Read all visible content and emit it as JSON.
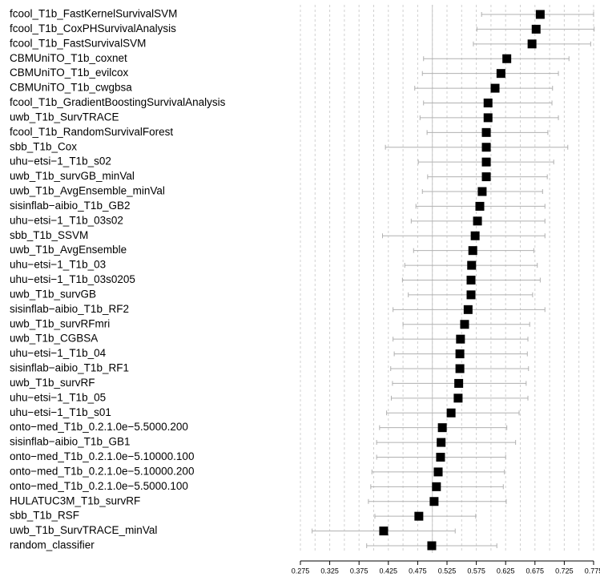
{
  "chart_data": {
    "type": "forest",
    "categories": [
      "fcool_T1b_FastKernelSurvivalSVM",
      "fcool_T1b_CoxPHSurvivalAnalysis",
      "fcool_T1b_FastSurvivalSVM",
      "CBMUniTO_T1b_coxnet",
      "CBMUniTO_T1b_evilcox",
      "CBMUniTO_T1b_cwgbsa",
      "fcool_T1b_GradientBoostingSurvivalAnalysis",
      "uwb_T1b_SurvTRACE",
      "fcool_T1b_RandomSurvivalForest",
      "sbb_T1b_Cox",
      "uhu−etsi−1_T1b_s02",
      "uwb_T1b_survGB_minVal",
      "uwb_T1b_AvgEnsemble_minVal",
      "sisinflab−aibio_T1b_GB2",
      "uhu−etsi−1_T1b_03s02",
      "sbb_T1b_SSVM",
      "uwb_T1b_AvgEnsemble",
      "uhu−etsi−1_T1b_03",
      "uhu−etsi−1_T1b_03s0205",
      "uwb_T1b_survGB",
      "sisinflab−aibio_T1b_RF2",
      "uwb_T1b_survRFmri",
      "uwb_T1b_CGBSA",
      "uhu−etsi−1_T1b_04",
      "sisinflab−aibio_T1b_RF1",
      "uwb_T1b_survRF",
      "uhu−etsi−1_T1b_05",
      "uhu−etsi−1_T1b_s01",
      "onto−med_T1b_0.2.1.0e−5.5000.200",
      "sisinflab−aibio_T1b_GB1",
      "onto−med_T1b_0.2.1.0e−5.10000.100",
      "onto−med_T1b_0.2.1.0e−5.10000.200",
      "onto−med_T1b_0.2.1.0e−5.5000.100",
      "HULATUC3M_T1b_survRF",
      "sbb_T1b_RSF",
      "uwb_T1b_SurvTRACE_minVal",
      "random_classifier"
    ],
    "values": [
      0.684,
      0.677,
      0.67,
      0.627,
      0.617,
      0.607,
      0.595,
      0.595,
      0.592,
      0.592,
      0.592,
      0.592,
      0.585,
      0.581,
      0.577,
      0.573,
      0.569,
      0.567,
      0.566,
      0.566,
      0.561,
      0.555,
      0.548,
      0.547,
      0.547,
      0.545,
      0.544,
      0.532,
      0.517,
      0.515,
      0.514,
      0.51,
      0.507,
      0.503,
      0.477,
      0.417,
      0.499
    ],
    "lower": [
      0.584,
      0.576,
      0.57,
      0.485,
      0.483,
      0.47,
      0.485,
      0.479,
      0.491,
      0.42,
      0.476,
      0.492,
      0.483,
      0.472,
      0.464,
      0.415,
      0.468,
      0.453,
      0.449,
      0.459,
      0.433,
      0.45,
      0.433,
      0.435,
      0.429,
      0.432,
      0.43,
      0.422,
      0.41,
      0.405,
      0.405,
      0.397,
      0.395,
      0.391,
      0.402,
      0.295,
      0.388
    ],
    "upper": [
      0.775,
      0.776,
      0.77,
      0.733,
      0.715,
      0.705,
      0.704,
      0.715,
      0.697,
      0.731,
      0.707,
      0.696,
      0.688,
      0.692,
      0.692,
      0.692,
      0.673,
      0.679,
      0.684,
      0.671,
      0.692,
      0.666,
      0.663,
      0.662,
      0.664,
      0.66,
      0.663,
      0.648,
      0.627,
      0.642,
      0.625,
      0.623,
      0.621,
      0.626,
      0.574,
      0.539,
      0.61
    ],
    "xlim": [
      0.275,
      0.775
    ],
    "xticks": [
      0.275,
      0.325,
      0.375,
      0.425,
      0.475,
      0.525,
      0.575,
      0.625,
      0.675,
      0.725,
      0.775
    ],
    "reference_line": 0.5,
    "grid": true,
    "color": "#000000",
    "ci_color": "#b0b0b0"
  }
}
